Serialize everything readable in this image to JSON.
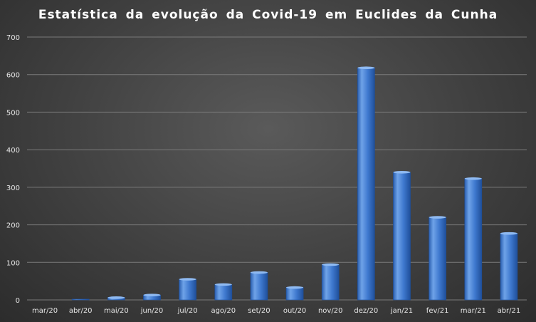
{
  "chart_data": {
    "type": "bar",
    "title": "Estatística da evolução da Covid-19 em Euclides da Cunha",
    "xlabel": "",
    "ylabel": "",
    "categories": [
      "mar/20",
      "abr/20",
      "mai/20",
      "jun/20",
      "jul/20",
      "ago/20",
      "set/20",
      "out/20",
      "nov/20",
      "dez/20",
      "jan/21",
      "fev/21",
      "mar/21",
      "abr/21"
    ],
    "values": [
      0,
      2,
      6,
      13,
      55,
      41,
      73,
      33,
      94,
      618,
      340,
      220,
      323,
      177
    ],
    "ylim": [
      0,
      700
    ],
    "yticks": [
      "0",
      "100",
      "200",
      "300",
      "400",
      "500",
      "600",
      "700"
    ],
    "grid": true,
    "legend": "none",
    "colors": {
      "bar_light": "#6fa3e8",
      "bar_main": "#3f79cf",
      "bar_dark": "#1f4f9a",
      "grid": "#7a7a7a",
      "text": "#e6e6e6"
    }
  }
}
